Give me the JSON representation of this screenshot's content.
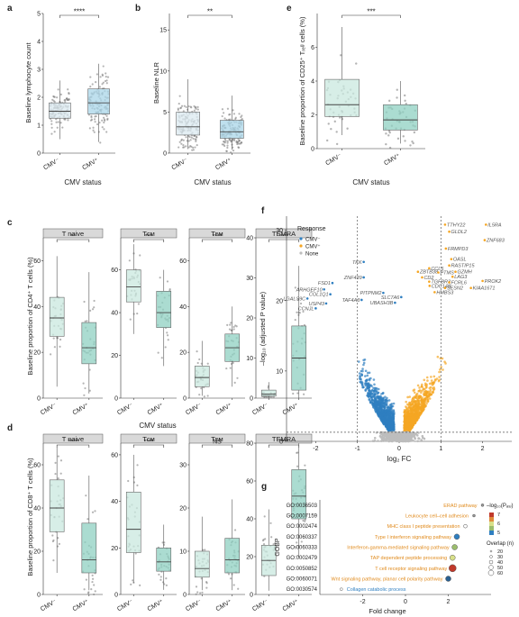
{
  "colors": {
    "cmv_neg": "#dbe9f0",
    "cmv_pos": "#a9d5e8",
    "teal": "#c9e8df",
    "teal_dark": "#8fd0c2",
    "strip": "#d9d9d9",
    "blue": "#2f7fc1",
    "orange": "#f5a623",
    "gray": "#bdbdbd"
  },
  "chart_data": [
    {
      "panel": "a",
      "type": "box",
      "ylabel": "Baseline lymphocyte count",
      "xlabel": "CMV status",
      "categories": [
        "CMV⁻",
        "CMV⁺"
      ],
      "ylim": [
        0,
        5
      ],
      "yticks": [
        "0",
        "1",
        "2",
        "3",
        "4",
        "5"
      ],
      "sig": "****",
      "boxes": [
        {
          "q1": 1.25,
          "med": 1.5,
          "q3": 1.8,
          "lo": 0.5,
          "hi": 2.6
        },
        {
          "q1": 1.4,
          "med": 1.8,
          "q3": 2.3,
          "lo": 0.4,
          "hi": 3.2
        }
      ]
    },
    {
      "panel": "b",
      "type": "box",
      "ylabel": "Baseline NLR",
      "xlabel": "CMV status",
      "categories": [
        "CMV⁻",
        "CMV⁺"
      ],
      "ylim": [
        0,
        17
      ],
      "yticks": [
        "0",
        "5",
        "10",
        "15"
      ],
      "sig": "**",
      "boxes": [
        {
          "q1": 2.2,
          "med": 3.2,
          "q3": 5.0,
          "lo": 0.5,
          "hi": 9.0
        },
        {
          "q1": 1.8,
          "med": 2.6,
          "q3": 4.0,
          "lo": 0.4,
          "hi": 7.0
        }
      ]
    },
    {
      "panel": "e",
      "type": "box",
      "ylabel": "Baseline proportion of CD25⁺ Tᵣₑᵍ cells (%)",
      "xlabel": "CMV status",
      "categories": [
        "CMV⁻",
        "CMV⁺"
      ],
      "ylim": [
        0,
        8
      ],
      "yticks": [
        "0",
        "2",
        "4",
        "6"
      ],
      "sig": "***",
      "boxes": [
        {
          "q1": 1.9,
          "med": 2.6,
          "q3": 4.1,
          "lo": 0.8,
          "hi": 7.2
        },
        {
          "q1": 1.1,
          "med": 1.7,
          "q3": 2.6,
          "lo": 0.3,
          "hi": 4.0
        }
      ]
    },
    {
      "panel": "c",
      "type": "box",
      "ylabel": "Baseline proportion of CD4⁺ T cells (%)",
      "xlabel": "CMV status",
      "categories": [
        "CMV⁻",
        "CMV⁺"
      ],
      "facets": [
        {
          "title": "T naive",
          "sig": "**",
          "ylim": [
            0,
            70
          ],
          "yticks": [
            "0",
            "20",
            "40",
            "60"
          ],
          "boxes": [
            {
              "q1": 27,
              "med": 35,
              "q3": 44,
              "lo": 5,
              "hi": 62
            },
            {
              "q1": 15,
              "med": 22,
              "q3": 33,
              "lo": 2,
              "hi": 55
            }
          ]
        },
        {
          "title": "Tᴄᴍ",
          "sig": "***",
          "ylim": [
            0,
            75
          ],
          "yticks": [
            "0",
            "20",
            "40",
            "60"
          ],
          "boxes": [
            {
              "q1": 45,
              "med": 52,
              "q3": 60,
              "lo": 30,
              "hi": 72
            },
            {
              "q1": 33,
              "med": 40,
              "q3": 50,
              "lo": 15,
              "hi": 60
            }
          ]
        },
        {
          "title": "Tᴇᴍ",
          "sig": "****",
          "ylim": [
            0,
            70
          ],
          "yticks": [
            "0",
            "20",
            "40",
            "60"
          ],
          "boxes": [
            {
              "q1": 5,
              "med": 9,
              "q3": 14,
              "lo": 1,
              "hi": 25
            },
            {
              "q1": 16,
              "med": 22,
              "q3": 28,
              "lo": 5,
              "hi": 40
            }
          ]
        },
        {
          "title": "TEMRA",
          "sig": "****",
          "ylim": [
            0,
            40
          ],
          "yticks": [
            "0",
            "10",
            "20",
            "30",
            "40"
          ],
          "boxes": [
            {
              "q1": 0.5,
              "med": 1,
              "q3": 2,
              "lo": 0,
              "hi": 4
            },
            {
              "q1": 2,
              "med": 10,
              "q3": 18,
              "lo": 0,
              "hi": 33
            }
          ]
        }
      ]
    },
    {
      "panel": "d",
      "type": "box",
      "ylabel": "Baseline proportion of CD8⁺ T cells (%)",
      "xlabel": "CMV status",
      "categories": [
        "CMV⁻",
        "CMV⁺"
      ],
      "facets": [
        {
          "title": "T naive",
          "sig": "****",
          "ylim": [
            0,
            70
          ],
          "yticks": [
            "0",
            "20",
            "40",
            "60"
          ],
          "boxes": [
            {
              "q1": 29,
              "med": 40,
              "q3": 53,
              "lo": 10,
              "hi": 68
            },
            {
              "q1": 10,
              "med": 16,
              "q3": 33,
              "lo": 2,
              "hi": 55
            }
          ]
        },
        {
          "title": "Tᴄᴍ",
          "sig": "****",
          "ylim": [
            0,
            65
          ],
          "yticks": [
            "0",
            "20",
            "40",
            "60"
          ],
          "boxes": [
            {
              "q1": 18,
              "med": 28,
              "q3": 44,
              "lo": 5,
              "hi": 60
            },
            {
              "q1": 10,
              "med": 14,
              "q3": 20,
              "lo": 2,
              "hi": 30
            }
          ]
        },
        {
          "title": "Tᴇᴍ",
          "sig": "NS",
          "ylim": [
            0,
            35
          ],
          "yticks": [
            "0",
            "10",
            "20",
            "30"
          ],
          "boxes": [
            {
              "q1": 4,
              "med": 6,
              "q3": 10,
              "lo": 1,
              "hi": 18
            },
            {
              "q1": 5,
              "med": 8,
              "q3": 13,
              "lo": 1,
              "hi": 22
            }
          ]
        },
        {
          "title": "TEMRA",
          "sig": "****",
          "ylim": [
            0,
            80
          ],
          "yticks": [
            "0",
            "20",
            "40",
            "60",
            "80"
          ],
          "boxes": [
            {
              "q1": 10,
              "med": 18,
              "q3": 26,
              "lo": 2,
              "hi": 45
            },
            {
              "q1": 40,
              "med": 52,
              "q3": 66,
              "lo": 20,
              "hi": 80
            }
          ]
        }
      ]
    },
    {
      "panel": "f",
      "type": "scatter",
      "xlabel": "log₂ FC",
      "ylabel": "–log₁₀ (adjusted P value)",
      "xlim": [
        -2.7,
        2.7
      ],
      "ylim": [
        0,
        32
      ],
      "xticks": [
        "-2",
        "-1",
        "0",
        "1",
        "2"
      ],
      "yticks": [
        "0",
        "10",
        "20",
        "30"
      ],
      "vlines": [
        -1,
        1
      ],
      "hline": 1.3,
      "legend": {
        "title": "Response",
        "entries": [
          "CMV⁻",
          "CMV⁺",
          "None"
        ]
      },
      "labels_pos": [
        {
          "text": "IL5RA",
          "x": 2.08,
          "y": 30.8
        },
        {
          "text": "TTHY22",
          "x": 1.1,
          "y": 30.8
        },
        {
          "text": "GLDL2",
          "x": 1.2,
          "y": 29.8
        },
        {
          "text": "ZNF683",
          "x": 2.05,
          "y": 28.6
        },
        {
          "text": "FRMPD3",
          "x": 1.12,
          "y": 27.4
        },
        {
          "text": "OASL",
          "x": 1.25,
          "y": 25.9
        },
        {
          "text": "RASTIP15",
          "x": 1.2,
          "y": 25.0
        },
        {
          "text": "CCL5",
          "x": 0.72,
          "y": 24.6
        },
        {
          "text": "ZBTB38",
          "x": 0.45,
          "y": 24.1
        },
        {
          "text": "PTMS",
          "x": 0.94,
          "y": 24.0
        },
        {
          "text": "GZMH",
          "x": 1.35,
          "y": 24.1
        },
        {
          "text": "LAG3",
          "x": 1.28,
          "y": 23.4
        },
        {
          "text": "CD2",
          "x": 0.55,
          "y": 23.3
        },
        {
          "text": "TGFBR3",
          "x": 0.72,
          "y": 22.7
        },
        {
          "text": "FCRL6",
          "x": 1.2,
          "y": 22.6
        },
        {
          "text": "PROK2",
          "x": 2.0,
          "y": 22.8
        },
        {
          "text": "CDC14B",
          "x": 0.73,
          "y": 22.1
        },
        {
          "text": "SESN2",
          "x": 1.1,
          "y": 21.8
        },
        {
          "text": "KIAA1671",
          "x": 1.72,
          "y": 21.8
        },
        {
          "text": "HMBS3",
          "x": 0.85,
          "y": 21.2
        }
      ],
      "labels_neg": [
        {
          "text": "TKK",
          "x": -0.85,
          "y": 25.5
        },
        {
          "text": "ZNF439",
          "x": -0.85,
          "y": 23.3
        },
        {
          "text": "FSD1",
          "x": -1.6,
          "y": 22.5
        },
        {
          "text": "ARHGEF10",
          "x": -1.8,
          "y": 21.6
        },
        {
          "text": "PITPNM2",
          "x": -0.38,
          "y": 21.1
        },
        {
          "text": "COL1Q1",
          "x": -1.65,
          "y": 20.9
        },
        {
          "text": "SLC7A6",
          "x": 0.05,
          "y": 20.5
        },
        {
          "text": "LGALS9C",
          "x": -2.2,
          "y": 20.3
        },
        {
          "text": "TAF4A3",
          "x": -0.9,
          "y": 20.1
        },
        {
          "text": "UBASH3B",
          "x": -0.1,
          "y": 19.7
        },
        {
          "text": "USP43",
          "x": -1.75,
          "y": 19.6
        },
        {
          "text": "CCNJL",
          "x": -2.0,
          "y": 18.9
        }
      ]
    },
    {
      "panel": "g",
      "type": "dot",
      "xlabel": "Fold change",
      "ylabel": "GOBP",
      "xlim": [
        -4,
        4
      ],
      "xticks": [
        "-2",
        "0",
        "2"
      ],
      "legend_color_title": "–log₁₀(Pₐ₉ⱼ)",
      "color_ticks": [
        "7",
        "6",
        "5"
      ],
      "legend_size_title": "Overlap (n)",
      "size_ticks": [
        "20",
        "30",
        "40",
        "50",
        "60"
      ],
      "terms": [
        {
          "id": "GO:0036503",
          "label": "ERAD pathway",
          "fc": 3.6,
          "color": "#999999",
          "size": 1.5
        },
        {
          "id": "GO:0007159",
          "label": "Leukocyte cell–cell adhesion",
          "fc": 3.2,
          "color": "#999999",
          "size": 1.5
        },
        {
          "id": "GO:0002474",
          "label": "MHC class I peptide presentation",
          "fc": 2.8,
          "color": "#ffffff",
          "size": 2
        },
        {
          "id": "GO:0060337",
          "label": "Type I interferon signaling pathway",
          "fc": 2.4,
          "color": "#2f7fc1",
          "size": 3
        },
        {
          "id": "GO:0060333",
          "label": "Interferon-gamma-mediated signaling pathway",
          "fc": 2.3,
          "color": "#9bbd6d",
          "size": 3
        },
        {
          "id": "GO:0002479",
          "label": "TAP dependent peptide processing",
          "fc": 2.2,
          "color": "#d8e08a",
          "size": 3
        },
        {
          "id": "GO:0050852",
          "label": "T cell receptor signaling pathway",
          "fc": 2.2,
          "color": "#c0392b",
          "size": 4
        },
        {
          "id": "GO:0060071",
          "label": "Wnt signaling pathway, planar cell polarity pathway",
          "fc": 2.0,
          "color": "#2a5f8f",
          "size": 3
        },
        {
          "id": "GO:0030574",
          "label": "Collagen catabolic process",
          "fc": -3.0,
          "color": "#ffffff",
          "size": 1.5
        }
      ]
    }
  ]
}
